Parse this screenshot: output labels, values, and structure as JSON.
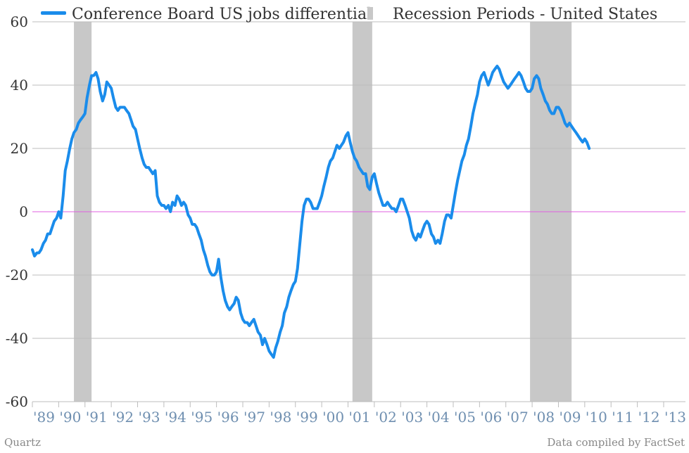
{
  "chart_data": {
    "type": "line",
    "title": "",
    "xlabel": "",
    "ylabel": "",
    "ylim": [
      -60,
      60
    ],
    "yticks": [
      60,
      40,
      20,
      0,
      -20,
      -40,
      -60
    ],
    "xlim": [
      1989.0,
      2013.83
    ],
    "xtick_labels": [
      "'89",
      "'90",
      "'91",
      "'92",
      "'93",
      "'94",
      "'95",
      "'96",
      "'97",
      "'98",
      "'99",
      "'00",
      "'01",
      "'02",
      "'03",
      "'04",
      "'05",
      "'06",
      "'07",
      "'08",
      "'09",
      "'10",
      "'11",
      "'12",
      "'13"
    ],
    "grid": true,
    "zero_line_color": "#e060e0",
    "legend_position": "top",
    "series": [
      {
        "name": "Conference Board US jobs differential",
        "color": "#1a8ceb",
        "points": [
          [
            1989.0,
            -12
          ],
          [
            1989.08,
            -14
          ],
          [
            1989.17,
            -13
          ],
          [
            1989.25,
            -13
          ],
          [
            1989.33,
            -12
          ],
          [
            1989.42,
            -10
          ],
          [
            1989.5,
            -9
          ],
          [
            1989.58,
            -7
          ],
          [
            1989.67,
            -7
          ],
          [
            1989.75,
            -5
          ],
          [
            1989.83,
            -3
          ],
          [
            1989.92,
            -2
          ],
          [
            1990.0,
            0
          ],
          [
            1990.08,
            -2
          ],
          [
            1990.17,
            5
          ],
          [
            1990.25,
            13
          ],
          [
            1990.33,
            16
          ],
          [
            1990.42,
            20
          ],
          [
            1990.5,
            23
          ],
          [
            1990.58,
            25
          ],
          [
            1990.67,
            26
          ],
          [
            1990.75,
            28
          ],
          [
            1990.83,
            29
          ],
          [
            1990.92,
            30
          ],
          [
            1991.0,
            31
          ],
          [
            1991.08,
            36
          ],
          [
            1991.17,
            40
          ],
          [
            1991.25,
            43
          ],
          [
            1991.33,
            43
          ],
          [
            1991.42,
            44
          ],
          [
            1991.5,
            42
          ],
          [
            1991.58,
            38
          ],
          [
            1991.67,
            35
          ],
          [
            1991.75,
            37
          ],
          [
            1991.83,
            41
          ],
          [
            1991.92,
            40
          ],
          [
            1992.0,
            39
          ],
          [
            1992.08,
            36
          ],
          [
            1992.17,
            33
          ],
          [
            1992.25,
            32
          ],
          [
            1992.33,
            33
          ],
          [
            1992.42,
            33
          ],
          [
            1992.5,
            33
          ],
          [
            1992.58,
            32
          ],
          [
            1992.67,
            31
          ],
          [
            1992.75,
            29
          ],
          [
            1992.83,
            27
          ],
          [
            1992.92,
            26
          ],
          [
            1993.0,
            23
          ],
          [
            1993.08,
            20
          ],
          [
            1993.17,
            17
          ],
          [
            1993.25,
            15
          ],
          [
            1993.33,
            14
          ],
          [
            1993.42,
            14
          ],
          [
            1993.5,
            13
          ],
          [
            1993.58,
            12
          ],
          [
            1993.67,
            13
          ],
          [
            1993.75,
            5
          ],
          [
            1993.83,
            3
          ],
          [
            1993.92,
            2
          ],
          [
            1994.0,
            2
          ],
          [
            1994.08,
            1
          ],
          [
            1994.17,
            2
          ],
          [
            1994.25,
            0
          ],
          [
            1994.33,
            3
          ],
          [
            1994.42,
            2
          ],
          [
            1994.5,
            5
          ],
          [
            1994.58,
            4
          ],
          [
            1994.67,
            2
          ],
          [
            1994.75,
            3
          ],
          [
            1994.83,
            2
          ],
          [
            1994.92,
            -1
          ],
          [
            1995.0,
            -2
          ],
          [
            1995.08,
            -4
          ],
          [
            1995.17,
            -4
          ],
          [
            1995.25,
            -5
          ],
          [
            1995.33,
            -7
          ],
          [
            1995.42,
            -9
          ],
          [
            1995.5,
            -12
          ],
          [
            1995.58,
            -14
          ],
          [
            1995.67,
            -17
          ],
          [
            1995.75,
            -19
          ],
          [
            1995.83,
            -20
          ],
          [
            1995.92,
            -20
          ],
          [
            1996.0,
            -19
          ],
          [
            1996.08,
            -15
          ],
          [
            1996.17,
            -21
          ],
          [
            1996.25,
            -25
          ],
          [
            1996.33,
            -28
          ],
          [
            1996.42,
            -30
          ],
          [
            1996.5,
            -31
          ],
          [
            1996.58,
            -30
          ],
          [
            1996.67,
            -29
          ],
          [
            1996.75,
            -27
          ],
          [
            1996.83,
            -28
          ],
          [
            1996.92,
            -32
          ],
          [
            1997.0,
            -34
          ],
          [
            1997.08,
            -35
          ],
          [
            1997.17,
            -35
          ],
          [
            1997.25,
            -36
          ],
          [
            1997.33,
            -35
          ],
          [
            1997.42,
            -34
          ],
          [
            1997.5,
            -36
          ],
          [
            1997.58,
            -38
          ],
          [
            1997.67,
            -39
          ],
          [
            1997.75,
            -42
          ],
          [
            1997.83,
            -40
          ],
          [
            1997.92,
            -42
          ],
          [
            1998.0,
            -44
          ],
          [
            1998.08,
            -45
          ],
          [
            1998.17,
            -46
          ],
          [
            1998.25,
            -43
          ],
          [
            1998.33,
            -41
          ],
          [
            1998.42,
            -38
          ],
          [
            1998.5,
            -36
          ],
          [
            1998.58,
            -32
          ],
          [
            1998.67,
            -30
          ],
          [
            1998.75,
            -27
          ],
          [
            1998.83,
            -25
          ],
          [
            1998.92,
            -23
          ],
          [
            1999.0,
            -22
          ],
          [
            1999.08,
            -18
          ],
          [
            1999.17,
            -10
          ],
          [
            1999.25,
            -3
          ],
          [
            1999.33,
            2
          ],
          [
            1999.42,
            4
          ],
          [
            1999.5,
            4
          ],
          [
            1999.58,
            3
          ],
          [
            1999.67,
            1
          ],
          [
            1999.75,
            1
          ],
          [
            1999.83,
            1
          ],
          [
            1999.92,
            3
          ],
          [
            2000.0,
            5
          ],
          [
            2000.08,
            8
          ],
          [
            2000.17,
            11
          ],
          [
            2000.25,
            14
          ],
          [
            2000.33,
            16
          ],
          [
            2000.42,
            17
          ],
          [
            2000.5,
            19
          ],
          [
            2000.58,
            21
          ],
          [
            2000.67,
            20
          ],
          [
            2000.75,
            21
          ],
          [
            2000.83,
            22
          ],
          [
            2000.92,
            24
          ],
          [
            2001.0,
            25
          ],
          [
            2001.08,
            22
          ],
          [
            2001.17,
            19
          ],
          [
            2001.25,
            17
          ],
          [
            2001.33,
            16
          ],
          [
            2001.42,
            14
          ],
          [
            2001.5,
            13
          ],
          [
            2001.58,
            12
          ],
          [
            2001.67,
            12
          ],
          [
            2001.75,
            8
          ],
          [
            2001.83,
            7
          ],
          [
            2001.92,
            11
          ],
          [
            2002.0,
            12
          ],
          [
            2002.08,
            9
          ],
          [
            2002.17,
            6
          ],
          [
            2002.25,
            4
          ],
          [
            2002.33,
            2
          ],
          [
            2002.42,
            2
          ],
          [
            2002.5,
            3
          ],
          [
            2002.58,
            2
          ],
          [
            2002.67,
            1
          ],
          [
            2002.75,
            1
          ],
          [
            2002.83,
            0
          ],
          [
            2002.92,
            2
          ],
          [
            2003.0,
            4
          ],
          [
            2003.08,
            4
          ],
          [
            2003.17,
            2
          ],
          [
            2003.25,
            0
          ],
          [
            2003.33,
            -2
          ],
          [
            2003.42,
            -6
          ],
          [
            2003.5,
            -8
          ],
          [
            2003.58,
            -9
          ],
          [
            2003.67,
            -7
          ],
          [
            2003.75,
            -8
          ],
          [
            2003.83,
            -6
          ],
          [
            2003.92,
            -4
          ],
          [
            2004.0,
            -3
          ],
          [
            2004.08,
            -4
          ],
          [
            2004.17,
            -7
          ],
          [
            2004.25,
            -8
          ],
          [
            2004.33,
            -10
          ],
          [
            2004.42,
            -9
          ],
          [
            2004.5,
            -10
          ],
          [
            2004.58,
            -7
          ],
          [
            2004.67,
            -3
          ],
          [
            2004.75,
            -1
          ],
          [
            2004.83,
            -1
          ],
          [
            2004.92,
            -2
          ],
          [
            2005.0,
            2
          ],
          [
            2005.08,
            6
          ],
          [
            2005.17,
            10
          ],
          [
            2005.25,
            13
          ],
          [
            2005.33,
            16
          ],
          [
            2005.42,
            18
          ],
          [
            2005.5,
            21
          ],
          [
            2005.58,
            23
          ],
          [
            2005.67,
            27
          ],
          [
            2005.75,
            31
          ],
          [
            2005.83,
            34
          ],
          [
            2005.92,
            37
          ],
          [
            2006.0,
            41
          ],
          [
            2006.08,
            43
          ],
          [
            2006.17,
            44
          ],
          [
            2006.25,
            42
          ],
          [
            2006.33,
            40
          ],
          [
            2006.42,
            42
          ],
          [
            2006.5,
            44
          ],
          [
            2006.58,
            45
          ],
          [
            2006.67,
            46
          ],
          [
            2006.75,
            45
          ],
          [
            2006.83,
            43
          ],
          [
            2006.92,
            41
          ],
          [
            2007.0,
            40
          ],
          [
            2007.08,
            39
          ],
          [
            2007.17,
            40
          ],
          [
            2007.25,
            41
          ],
          [
            2007.33,
            42
          ],
          [
            2007.42,
            43
          ],
          [
            2007.5,
            44
          ],
          [
            2007.58,
            43
          ],
          [
            2007.67,
            41
          ],
          [
            2007.75,
            39
          ],
          [
            2007.83,
            38
          ],
          [
            2007.92,
            38
          ],
          [
            2008.0,
            39
          ],
          [
            2008.08,
            42
          ],
          [
            2008.17,
            43
          ],
          [
            2008.25,
            42
          ],
          [
            2008.33,
            39
          ],
          [
            2008.42,
            37
          ],
          [
            2008.5,
            35
          ],
          [
            2008.58,
            34
          ],
          [
            2008.67,
            32
          ],
          [
            2008.75,
            31
          ],
          [
            2008.83,
            31
          ],
          [
            2008.92,
            33
          ],
          [
            2009.0,
            33
          ],
          [
            2009.08,
            32
          ],
          [
            2009.17,
            30
          ],
          [
            2009.25,
            28
          ],
          [
            2009.33,
            27
          ],
          [
            2009.42,
            28
          ],
          [
            2009.5,
            27
          ],
          [
            2009.58,
            26
          ],
          [
            2009.67,
            25
          ],
          [
            2009.75,
            24
          ],
          [
            2009.83,
            23
          ],
          [
            2009.92,
            22
          ],
          [
            2010.0,
            23
          ],
          [
            2010.08,
            22
          ],
          [
            2010.17,
            20
          ]
        ]
      }
    ],
    "recessions": {
      "name": "Recession Periods - United States",
      "color": "#c8c8c8",
      "periods": [
        [
          1990.58,
          1991.25
        ],
        [
          2001.17,
          2001.92
        ],
        [
          2007.92,
          2009.5
        ]
      ]
    }
  },
  "footer": {
    "source_left": "Quartz",
    "source_right": "Data compiled by FactSet"
  }
}
